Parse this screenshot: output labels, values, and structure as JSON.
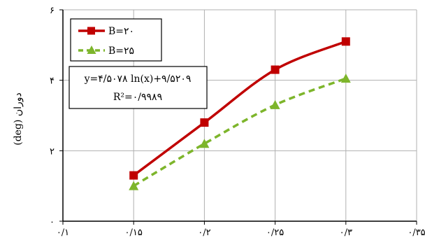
{
  "chart_data": {
    "type": "line",
    "title": "",
    "xlabel": "",
    "ylabel": "(deg) دوران",
    "xlim": [
      0.1,
      0.35
    ],
    "ylim": [
      0,
      6
    ],
    "x_ticks": [
      "۰/۱",
      "۰/۱۵",
      "۰/۲",
      "۰/۲۵",
      "۰/۳",
      "۰/۳۵"
    ],
    "y_ticks": [
      "۰",
      "۲",
      "۴",
      "۶"
    ],
    "grid": true,
    "legend_position": "top-left",
    "x": [
      0.15,
      0.2,
      0.25,
      0.3
    ],
    "series": [
      {
        "name": "B=۲۰",
        "values": [
          1.3,
          2.8,
          4.3,
          5.1
        ],
        "color": "#C00000",
        "marker": "square",
        "style": "solid"
      },
      {
        "name": "B=۲۵",
        "values": [
          1.0,
          2.2,
          3.3,
          4.05
        ],
        "color": "#7DB52B",
        "marker": "triangle",
        "style": "dashed"
      }
    ],
    "annotation": {
      "line1": "y=۴/۵۰۷۸ ln(x)+۹/۵۲۰۹",
      "line2": "R²=۰/۹۹۸۹"
    }
  }
}
